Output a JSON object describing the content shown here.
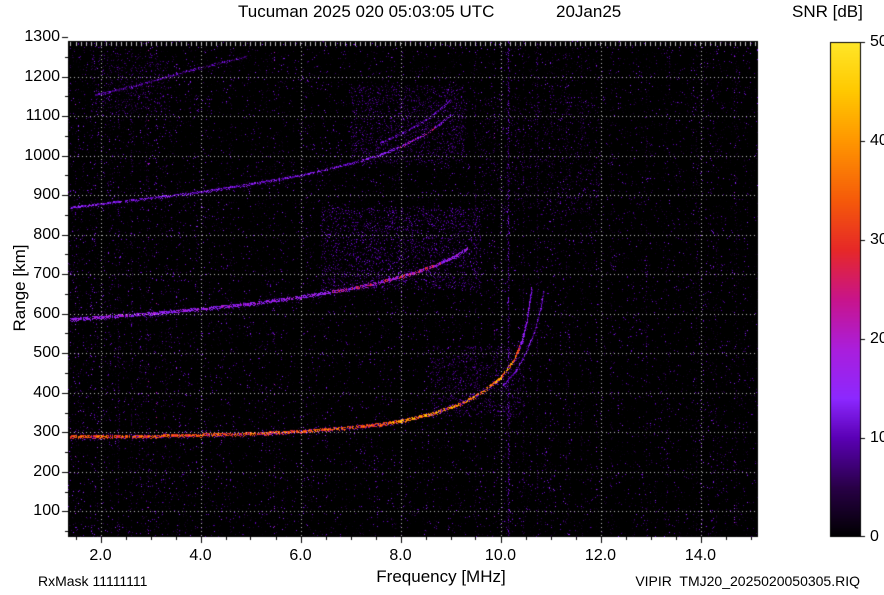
{
  "header": {
    "title": "Tucuman 2025 020 05:03:05 UTC",
    "date": "20Jan25"
  },
  "footer": {
    "rxmask": "RxMask 11111111",
    "file": "VIPIR  TMJ20_2025020050305.RIQ"
  },
  "chart_data": {
    "type": "heatmap",
    "title": "Tucuman 2025 020 05:03:05 UTC",
    "subtitle": "20Jan25",
    "xlabel": "Frequency [MHz]",
    "ylabel": "Range [km]",
    "xlim": [
      1.35,
      15.15
    ],
    "ylim": [
      35,
      1290
    ],
    "xticks": [
      2.0,
      4.0,
      6.0,
      8.0,
      10.0,
      12.0,
      14.0
    ],
    "xtick_labels": [
      "2.0",
      "4.0",
      "6.0",
      "8.0",
      "10.0",
      "12.0",
      "14.0"
    ],
    "yticks": [
      100,
      200,
      300,
      400,
      500,
      600,
      700,
      800,
      900,
      1000,
      1100,
      1200,
      1300
    ],
    "grid": "dotted-white",
    "background": "#000000",
    "colorbar": {
      "label": "SNR [dB]",
      "min": 0,
      "max": 50,
      "ticks": [
        0,
        10,
        20,
        30,
        40,
        50
      ]
    },
    "colormap_stops": [
      [
        0.0,
        [
          0,
          0,
          0
        ]
      ],
      [
        0.1,
        [
          40,
          0,
          70
        ]
      ],
      [
        0.2,
        [
          90,
          0,
          180
        ]
      ],
      [
        0.28,
        [
          140,
          40,
          255
        ]
      ],
      [
        0.38,
        [
          170,
          30,
          220
        ]
      ],
      [
        0.48,
        [
          200,
          20,
          140
        ]
      ],
      [
        0.58,
        [
          230,
          40,
          40
        ]
      ],
      [
        0.68,
        [
          245,
          90,
          10
        ]
      ],
      [
        0.8,
        [
          255,
          150,
          0
        ]
      ],
      [
        0.9,
        [
          255,
          200,
          0
        ]
      ],
      [
        1.0,
        [
          255,
          230,
          40
        ]
      ]
    ],
    "echo_traces": [
      {
        "name": "F-region 1st hop",
        "snr_core": 36,
        "snr_hot": 44,
        "hot_f": [
          7.8,
          10.3
        ],
        "fade_r": 520,
        "snr_halo": 14,
        "core_width": 3,
        "halo_width": 4,
        "points": [
          [
            1.4,
            288
          ],
          [
            3,
            290
          ],
          [
            5,
            296
          ],
          [
            6,
            302
          ],
          [
            7,
            312
          ],
          [
            7.6,
            320
          ],
          [
            8,
            328
          ],
          [
            8.6,
            346
          ],
          [
            9.2,
            372
          ],
          [
            9.6,
            400
          ],
          [
            10.0,
            438
          ],
          [
            10.25,
            480
          ],
          [
            10.42,
            530
          ],
          [
            10.52,
            580
          ],
          [
            10.58,
            630
          ],
          [
            10.62,
            665
          ]
        ]
      },
      {
        "name": "1st hop X-mode tip",
        "snr_core": 13,
        "snr_halo": 7,
        "core_width": 2,
        "halo_width": 3,
        "points": [
          [
            10.05,
            420
          ],
          [
            10.3,
            455
          ],
          [
            10.5,
            500
          ],
          [
            10.68,
            555
          ],
          [
            10.8,
            615
          ],
          [
            10.86,
            660
          ]
        ]
      },
      {
        "name": "2nd hop",
        "snr_core": 17,
        "snr_hot": 28,
        "hot_f": [
          6.6,
          8.8
        ],
        "snr_halo": 10,
        "core_width": 3,
        "halo_width": 7,
        "points": [
          [
            1.4,
            585
          ],
          [
            3,
            600
          ],
          [
            4,
            612
          ],
          [
            5,
            625
          ],
          [
            6,
            642
          ],
          [
            7,
            663
          ],
          [
            7.6,
            680
          ],
          [
            8.2,
            700
          ],
          [
            8.7,
            722
          ],
          [
            9.1,
            745
          ],
          [
            9.35,
            765
          ]
        ]
      },
      {
        "name": "3rd hop",
        "snr_core": 13,
        "snr_hot": 24,
        "hot_f": [
          8.0,
          8.7
        ],
        "snr_halo": 7,
        "core_width": 2,
        "halo_width": 6,
        "points": [
          [
            1.4,
            868
          ],
          [
            3,
            893
          ],
          [
            4,
            908
          ],
          [
            5,
            928
          ],
          [
            6,
            950
          ],
          [
            7,
            980
          ],
          [
            7.6,
            1002
          ],
          [
            8.1,
            1028
          ],
          [
            8.5,
            1055
          ],
          [
            8.8,
            1082
          ],
          [
            9.0,
            1105
          ]
        ]
      },
      {
        "name": "3rd hop upper branch",
        "snr_core": 10,
        "snr_halo": 5,
        "core_width": 2,
        "halo_width": 4,
        "points": [
          [
            7.6,
            1032
          ],
          [
            8.1,
            1060
          ],
          [
            8.5,
            1090
          ],
          [
            8.8,
            1120
          ],
          [
            9.0,
            1142
          ]
        ]
      },
      {
        "name": "4th hop partial",
        "snr_core": 9,
        "snr_halo": 5,
        "core_width": 2,
        "halo_width": 4,
        "points": [
          [
            1.9,
            1153
          ],
          [
            2.8,
            1180
          ],
          [
            3.6,
            1210
          ],
          [
            4.4,
            1235
          ],
          [
            4.9,
            1250
          ]
        ]
      }
    ],
    "diffuse_patches": [
      {
        "f": [
          6.4,
          9.6
        ],
        "r": [
          660,
          870
        ],
        "count": 2000,
        "snr": [
          3,
          12
        ]
      },
      {
        "f": [
          8.6,
          10.4
        ],
        "r": [
          340,
          520
        ],
        "count": 800,
        "snr": [
          3,
          10
        ]
      },
      {
        "f": [
          7.0,
          9.3
        ],
        "r": [
          980,
          1180
        ],
        "count": 1300,
        "snr": [
          3,
          10
        ]
      },
      {
        "f": [
          9.6,
          12.0
        ],
        "r": [
          850,
          1150
        ],
        "count": 700,
        "snr": [
          2,
          9
        ]
      },
      {
        "f": [
          1.8,
          3.4
        ],
        "r": [
          1100,
          1260
        ],
        "count": 400,
        "snr": [
          3,
          9
        ]
      }
    ],
    "rfi_lines": [
      {
        "f": 10.15,
        "strength": 0.85
      },
      {
        "f": 10.45,
        "strength": 0.3
      },
      {
        "f": 10.72,
        "strength": 0.4
      },
      {
        "f": 11.3,
        "strength": 0.25
      },
      {
        "f": 9.5,
        "strength": 0.3
      },
      {
        "f": 2.35,
        "strength": 0.35
      },
      {
        "f": 2.6,
        "strength": 0.3
      },
      {
        "f": 2.9,
        "strength": 0.25
      },
      {
        "f": 3.3,
        "strength": 0.2
      },
      {
        "f": 4.6,
        "strength": 0.18
      },
      {
        "f": 5.3,
        "strength": 0.15
      },
      {
        "f": 6.2,
        "strength": 0.15
      },
      {
        "f": 11.0,
        "strength": 0.2
      },
      {
        "f": 11.6,
        "strength": 0.18
      },
      {
        "f": 12.2,
        "strength": 0.18
      },
      {
        "f": 12.9,
        "strength": 0.2
      },
      {
        "f": 13.3,
        "strength": 0.18
      },
      {
        "f": 13.9,
        "strength": 0.2
      },
      {
        "f": 14.3,
        "strength": 0.22
      },
      {
        "f": 14.7,
        "strength": 0.25
      }
    ],
    "noise": {
      "speckle_count": 60000,
      "seed": 20250120
    }
  }
}
